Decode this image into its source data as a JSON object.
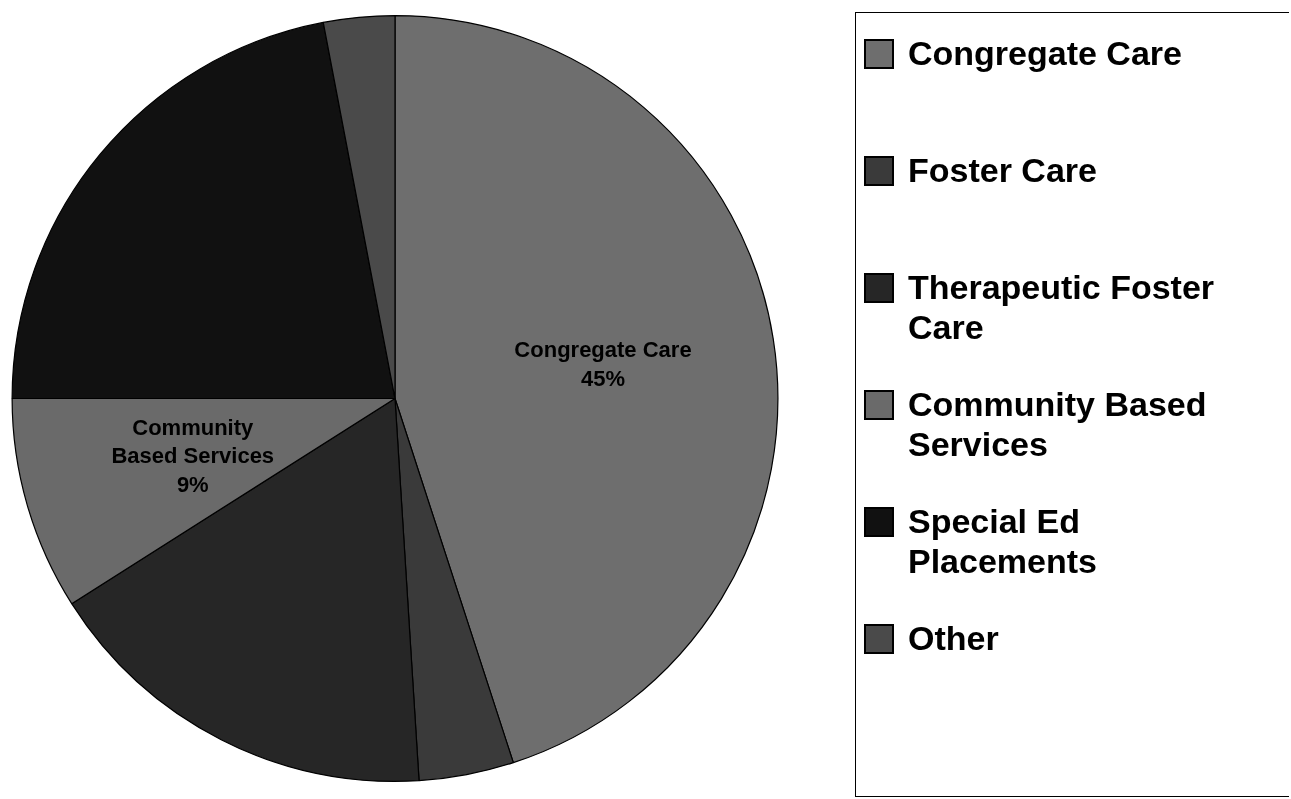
{
  "chart_data": {
    "type": "pie",
    "categories": [
      "Congregate Care",
      "Foster Care",
      "Therapeutic Foster Care",
      "Community Based Services",
      "Special Ed Placements",
      "Other"
    ],
    "values": [
      45,
      4,
      17,
      9,
      22,
      3
    ],
    "colors": [
      "#6e6e6e",
      "#3a3a3a",
      "#262626",
      "#6a6a6a",
      "#111111",
      "#4a4a4a"
    ],
    "value_labels": [
      "45%",
      null,
      null,
      "9%",
      null,
      null
    ],
    "legend": "right"
  }
}
